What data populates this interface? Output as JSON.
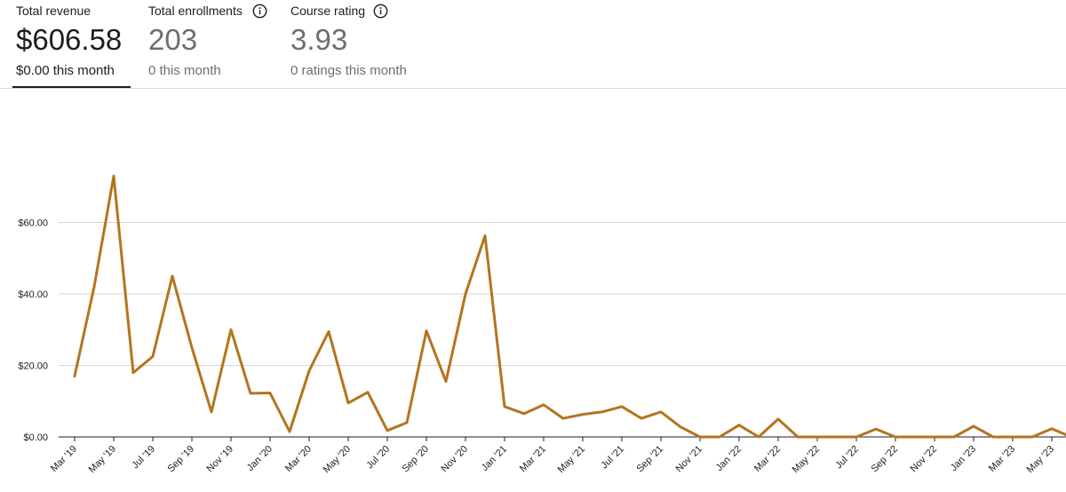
{
  "metrics": [
    {
      "label": "Total revenue",
      "value": "$606.58",
      "sub": "$0.00 this month"
    },
    {
      "label": "Total enrollments",
      "value": "203",
      "sub": "0 this month"
    },
    {
      "label": "Course rating",
      "value": "3.93",
      "sub": "0 ratings this month"
    }
  ],
  "icons": {
    "info": "info-circle-icon"
  },
  "colors": {
    "line": "#b4741e",
    "grid": "#d1d7dc",
    "text": "#1c1d1f",
    "muted": "#6a6f73"
  },
  "chart_data": {
    "type": "line",
    "title": "",
    "xlabel": "",
    "ylabel": "",
    "ylim": [
      0,
      60
    ],
    "ytick_labels": [
      "$0.00",
      "$20.00",
      "$40.00",
      "$60.00"
    ],
    "yticks": [
      0,
      20,
      40,
      60
    ],
    "x": [
      "Mar '19",
      "Apr '19",
      "May '19",
      "Jun '19",
      "Jul '19",
      "Aug '19",
      "Sep '19",
      "Oct '19",
      "Nov '19",
      "Dec '19",
      "Jan '20",
      "Feb '20",
      "Mar '20",
      "Apr '20",
      "May '20",
      "Jun '20",
      "Jul '20",
      "Aug '20",
      "Sep '20",
      "Oct '20",
      "Nov '20",
      "Dec '20",
      "Jan '21",
      "Feb '21",
      "Mar '21",
      "Apr '21",
      "May '21",
      "Jun '21",
      "Jul '21",
      "Aug '21",
      "Sep '21",
      "Oct '21",
      "Nov '21",
      "Dec '21",
      "Jan '22",
      "Feb '22",
      "Mar '22",
      "Apr '22",
      "May '22",
      "Jun '22",
      "Jul '22",
      "Aug '22",
      "Sep '22",
      "Oct '22",
      "Nov '22",
      "Dec '22",
      "Jan '23",
      "Feb '23",
      "Mar '23",
      "Apr '23",
      "May '23",
      "Jun '23"
    ],
    "tick_labels": [
      "Mar '19",
      "May '19",
      "Jul '19",
      "Sep '19",
      "Nov '19",
      "Jan '20",
      "Mar '20",
      "May '20",
      "Jul '20",
      "Sep '20",
      "Nov '20",
      "Jan '21",
      "Mar '21",
      "May '21",
      "Jul '21",
      "Sep '21",
      "Nov '21",
      "Jan '22",
      "Mar '22",
      "May '22",
      "Jul '22",
      "Sep '22",
      "Nov '22",
      "Jan '23",
      "Mar '23",
      "May '23"
    ],
    "series": [
      {
        "values": [
          17.0,
          42.0,
          73.0,
          18.0,
          22.5,
          45.0,
          25.0,
          7.0,
          30.0,
          12.2,
          12.3,
          1.5,
          18.5,
          29.5,
          9.5,
          12.5,
          1.8,
          4.0,
          29.7,
          15.5,
          40.0,
          56.3,
          8.5,
          6.5,
          9.0,
          5.2,
          6.3,
          7.0,
          8.5,
          5.2,
          7.0,
          2.8,
          0.0,
          0.0,
          3.3,
          0.0,
          5.0,
          0.0,
          0.0,
          0.0,
          0.0,
          2.2,
          0.0,
          0.0,
          0.0,
          0.0,
          3.0,
          0.0,
          0.0,
          0.0,
          2.3,
          0.0
        ]
      }
    ],
    "grid": true,
    "legend": "none"
  }
}
